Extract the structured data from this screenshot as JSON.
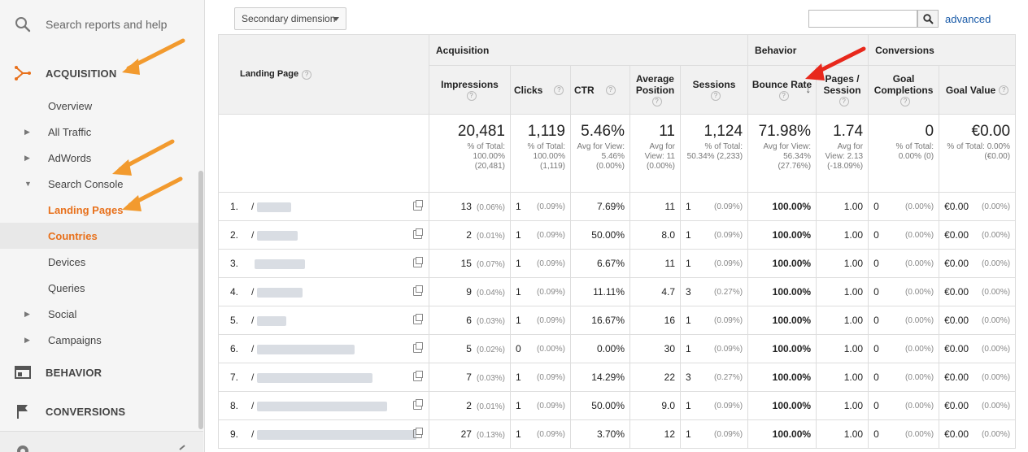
{
  "sidebar": {
    "search_placeholder": "Search reports and help",
    "acquisition": "ACQUISITION",
    "overview": "Overview",
    "all_traffic": "All Traffic",
    "adwords": "AdWords",
    "search_console": "Search Console",
    "landing_pages": "Landing Pages",
    "countries": "Countries",
    "devices": "Devices",
    "queries": "Queries",
    "social": "Social",
    "campaigns": "Campaigns",
    "behavior": "BEHAVIOR",
    "conversions": "CONVERSIONS"
  },
  "toolbar": {
    "secondary_dimension": "Secondary dimension",
    "advanced": "advanced"
  },
  "table": {
    "groups": {
      "acquisition": "Acquisition",
      "behavior": "Behavior",
      "conversions": "Conversions"
    },
    "headers": {
      "landing_page": "Landing Page",
      "impressions": "Impressions",
      "clicks": "Clicks",
      "ctr": "CTR",
      "average_position": "Average Position",
      "sessions": "Sessions",
      "bounce_rate": "Bounce Rate",
      "pages_session": "Pages / Session",
      "goal_completions": "Goal Completions",
      "goal_value": "Goal Value"
    },
    "totals": {
      "impressions": {
        "value": "20,481",
        "sub": "% of Total: 100.00% (20,481)"
      },
      "clicks": {
        "value": "1,119",
        "sub": "% of Total: 100.00% (1,119)"
      },
      "ctr": {
        "value": "5.46%",
        "sub": "Avg for View: 5.46% (0.00%)"
      },
      "avg_position": {
        "value": "11",
        "sub": "Avg for View: 11 (0.00%)"
      },
      "sessions": {
        "value": "1,124",
        "sub": "% of Total: 50.34% (2,233)"
      },
      "bounce_rate": {
        "value": "71.98%",
        "sub": "Avg for View: 56.34% (27.76%)"
      },
      "pages_session": {
        "value": "1.74",
        "sub": "Avg for View: 2.13 (-18.09%)"
      },
      "goal_completions": {
        "value": "0",
        "sub": "% of Total: 0.00% (0)"
      },
      "goal_value": {
        "value": "€0.00",
        "sub": "% of Total: 0.00% (€0.00)"
      }
    },
    "rows": [
      {
        "idx": "1.",
        "prefix": "/",
        "imp": "13",
        "imp_pct": "(0.06%)",
        "clk": "1",
        "clk_pct": "(0.09%)",
        "ctr": "7.69%",
        "pos": "11",
        "ses": "1",
        "ses_pct": "(0.09%)",
        "br": "100.00%",
        "pps": "1.00",
        "gc": "0",
        "gc_pct": "(0.00%)",
        "gv": "€0.00",
        "gv_pct": "(0.00%)"
      },
      {
        "idx": "2.",
        "prefix": "/",
        "imp": "2",
        "imp_pct": "(0.01%)",
        "clk": "1",
        "clk_pct": "(0.09%)",
        "ctr": "50.00%",
        "pos": "8.0",
        "ses": "1",
        "ses_pct": "(0.09%)",
        "br": "100.00%",
        "pps": "1.00",
        "gc": "0",
        "gc_pct": "(0.00%)",
        "gv": "€0.00",
        "gv_pct": "(0.00%)"
      },
      {
        "idx": "3.",
        "prefix": "",
        "imp": "15",
        "imp_pct": "(0.07%)",
        "clk": "1",
        "clk_pct": "(0.09%)",
        "ctr": "6.67%",
        "pos": "11",
        "ses": "1",
        "ses_pct": "(0.09%)",
        "br": "100.00%",
        "pps": "1.00",
        "gc": "0",
        "gc_pct": "(0.00%)",
        "gv": "€0.00",
        "gv_pct": "(0.00%)"
      },
      {
        "idx": "4.",
        "prefix": "/",
        "imp": "9",
        "imp_pct": "(0.04%)",
        "clk": "1",
        "clk_pct": "(0.09%)",
        "ctr": "11.11%",
        "pos": "4.7",
        "ses": "3",
        "ses_pct": "(0.27%)",
        "br": "100.00%",
        "pps": "1.00",
        "gc": "0",
        "gc_pct": "(0.00%)",
        "gv": "€0.00",
        "gv_pct": "(0.00%)"
      },
      {
        "idx": "5.",
        "prefix": "/",
        "imp": "6",
        "imp_pct": "(0.03%)",
        "clk": "1",
        "clk_pct": "(0.09%)",
        "ctr": "16.67%",
        "pos": "16",
        "ses": "1",
        "ses_pct": "(0.09%)",
        "br": "100.00%",
        "pps": "1.00",
        "gc": "0",
        "gc_pct": "(0.00%)",
        "gv": "€0.00",
        "gv_pct": "(0.00%)"
      },
      {
        "idx": "6.",
        "prefix": "/",
        "imp": "5",
        "imp_pct": "(0.02%)",
        "clk": "0",
        "clk_pct": "(0.00%)",
        "ctr": "0.00%",
        "pos": "30",
        "ses": "1",
        "ses_pct": "(0.09%)",
        "br": "100.00%",
        "pps": "1.00",
        "gc": "0",
        "gc_pct": "(0.00%)",
        "gv": "€0.00",
        "gv_pct": "(0.00%)"
      },
      {
        "idx": "7.",
        "prefix": "/",
        "imp": "7",
        "imp_pct": "(0.03%)",
        "clk": "1",
        "clk_pct": "(0.09%)",
        "ctr": "14.29%",
        "pos": "22",
        "ses": "3",
        "ses_pct": "(0.27%)",
        "br": "100.00%",
        "pps": "1.00",
        "gc": "0",
        "gc_pct": "(0.00%)",
        "gv": "€0.00",
        "gv_pct": "(0.00%)"
      },
      {
        "idx": "8.",
        "prefix": "/",
        "imp": "2",
        "imp_pct": "(0.01%)",
        "clk": "1",
        "clk_pct": "(0.09%)",
        "ctr": "50.00%",
        "pos": "9.0",
        "ses": "1",
        "ses_pct": "(0.09%)",
        "br": "100.00%",
        "pps": "1.00",
        "gc": "0",
        "gc_pct": "(0.00%)",
        "gv": "€0.00",
        "gv_pct": "(0.00%)"
      },
      {
        "idx": "9.",
        "prefix": "/",
        "imp": "27",
        "imp_pct": "(0.13%)",
        "clk": "1",
        "clk_pct": "(0.09%)",
        "ctr": "3.70%",
        "pos": "12",
        "ses": "1",
        "ses_pct": "(0.09%)",
        "br": "100.00%",
        "pps": "1.00",
        "gc": "0",
        "gc_pct": "(0.00%)",
        "gv": "€0.00",
        "gv_pct": "(0.00%)"
      }
    ]
  },
  "colors": {
    "accent_orange": "#e8711c",
    "link_blue": "#1a5ba8",
    "arrow_orange": "#f29a2e",
    "arrow_red": "#e8281c"
  }
}
